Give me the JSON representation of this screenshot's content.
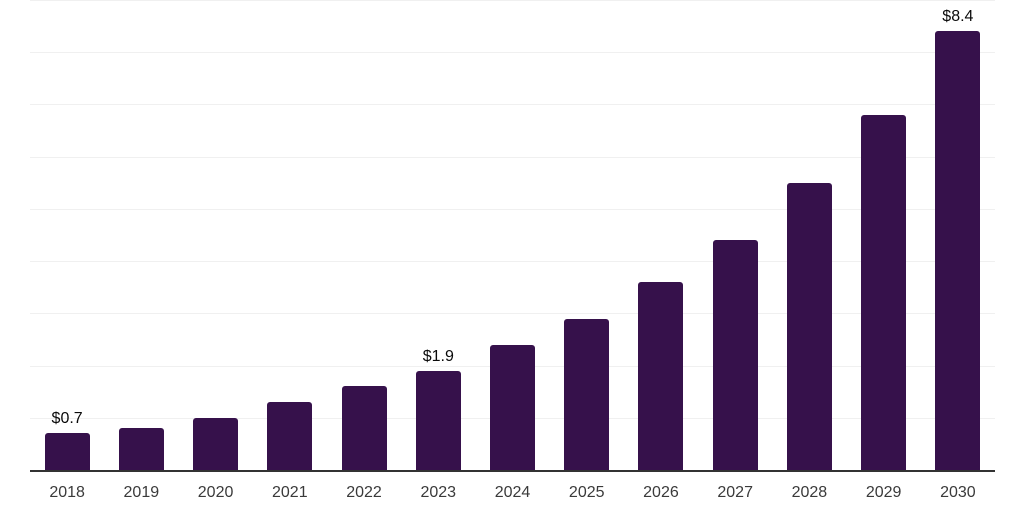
{
  "chart_data": {
    "type": "bar",
    "title": "",
    "xlabel": "",
    "ylabel": "",
    "categories": [
      "2018",
      "2019",
      "2020",
      "2021",
      "2022",
      "2023",
      "2024",
      "2025",
      "2026",
      "2027",
      "2028",
      "2029",
      "2030"
    ],
    "values": [
      0.7,
      0.8,
      1.0,
      1.3,
      1.6,
      1.9,
      2.4,
      2.9,
      3.6,
      4.4,
      5.5,
      6.8,
      8.4
    ],
    "value_labels": [
      "$0.7",
      null,
      null,
      null,
      null,
      "$1.9",
      null,
      null,
      null,
      null,
      null,
      null,
      "$8.4"
    ],
    "ylim": [
      0,
      9
    ],
    "gridline_step": 1,
    "grid": true,
    "legend_position": "none",
    "colors": {
      "bar": "#36114B",
      "axis_line": "#333333",
      "gridline": "#f0f0f0",
      "tick_label": "#3a3a3a",
      "value_label": "#0a0a0a",
      "background": "#ffffff"
    }
  }
}
